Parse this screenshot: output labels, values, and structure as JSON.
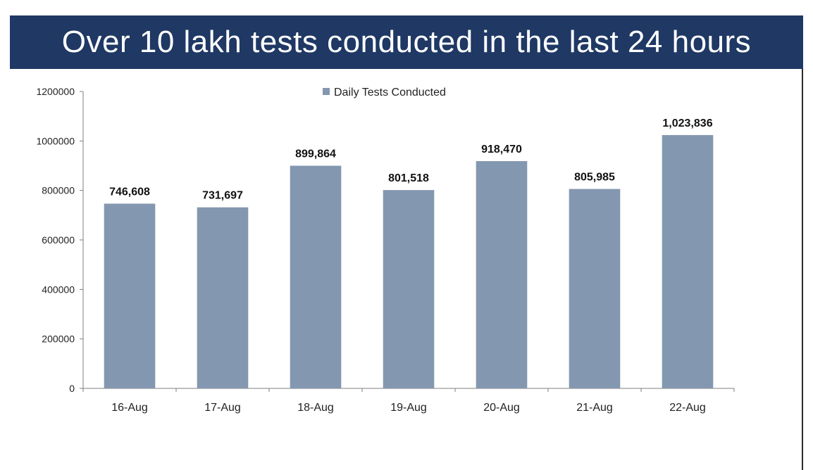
{
  "banner": {
    "title": "Over 10 lakh tests conducted in the last 24 hours",
    "color": "#1f3864"
  },
  "chart_data": {
    "type": "bar",
    "categories": [
      "16-Aug",
      "17-Aug",
      "18-Aug",
      "19-Aug",
      "20-Aug",
      "21-Aug",
      "22-Aug"
    ],
    "series": [
      {
        "name": "Daily Tests Conducted",
        "values": [
          746608,
          731697,
          899864,
          801518,
          918470,
          805985,
          1023836
        ],
        "data_labels": [
          "746,608",
          "731,697",
          "899,864",
          "801,518",
          "918,470",
          "805,985",
          "1,023,836"
        ],
        "color": "#8497b0"
      }
    ],
    "y_ticks": [
      "0",
      "200000",
      "400000",
      "600000",
      "800000",
      "1000000",
      "1200000"
    ],
    "ylim": [
      0,
      1200000
    ],
    "legend_position": "top-center",
    "grid": false
  }
}
